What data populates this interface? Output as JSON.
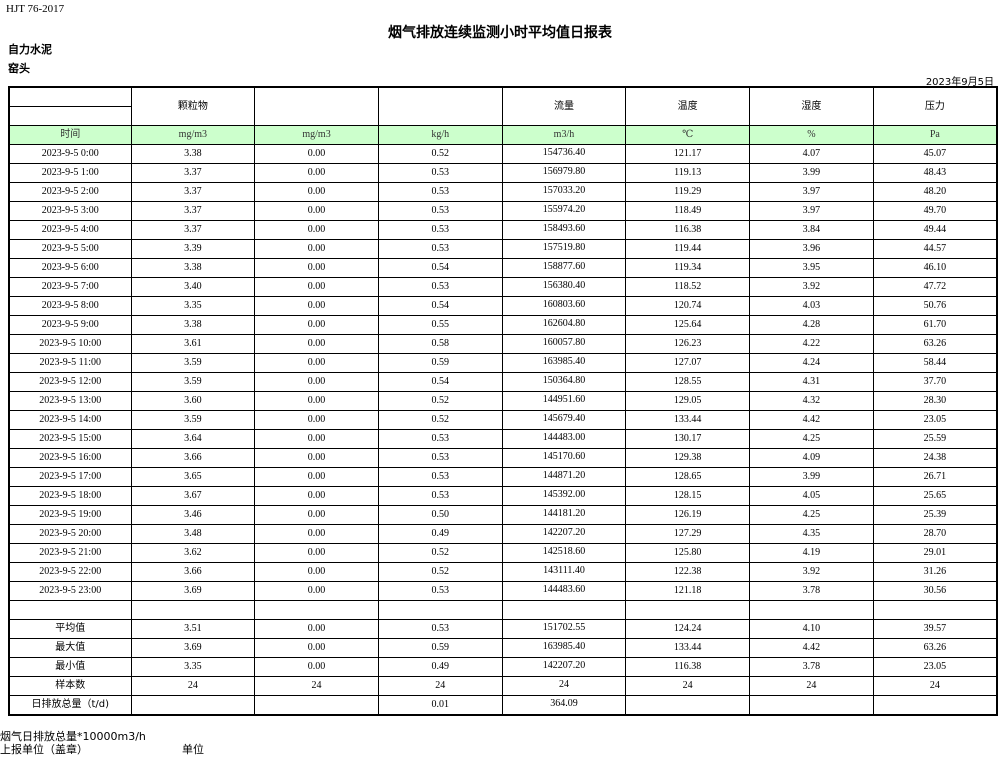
{
  "header": {
    "standard": "HJT  76-2017",
    "title": "烟气排放连续监测小时平均值日报表",
    "company": "自力水泥",
    "location": "窑头",
    "date": "2023年9月5日"
  },
  "columns": [
    "",
    "颗粒物",
    "",
    "",
    "流量",
    "温度",
    "湿度",
    "压力"
  ],
  "units": [
    "时间",
    "mg/m3",
    "mg/m3",
    "kg/h",
    "m3/h",
    "℃",
    "%",
    "Pa"
  ],
  "rows": [
    [
      "2023-9-5 0:00",
      "3.38",
      "0.00",
      "0.52",
      "154736.40",
      "121.17",
      "4.07",
      "45.07"
    ],
    [
      "2023-9-5 1:00",
      "3.37",
      "0.00",
      "0.53",
      "156979.80",
      "119.13",
      "3.99",
      "48.43"
    ],
    [
      "2023-9-5 2:00",
      "3.37",
      "0.00",
      "0.53",
      "157033.20",
      "119.29",
      "3.97",
      "48.20"
    ],
    [
      "2023-9-5 3:00",
      "3.37",
      "0.00",
      "0.53",
      "155974.20",
      "118.49",
      "3.97",
      "49.70"
    ],
    [
      "2023-9-5 4:00",
      "3.37",
      "0.00",
      "0.53",
      "158493.60",
      "116.38",
      "3.84",
      "49.44"
    ],
    [
      "2023-9-5 5:00",
      "3.39",
      "0.00",
      "0.53",
      "157519.80",
      "119.44",
      "3.96",
      "44.57"
    ],
    [
      "2023-9-5 6:00",
      "3.38",
      "0.00",
      "0.54",
      "158877.60",
      "119.34",
      "3.95",
      "46.10"
    ],
    [
      "2023-9-5 7:00",
      "3.40",
      "0.00",
      "0.53",
      "156380.40",
      "118.52",
      "3.92",
      "47.72"
    ],
    [
      "2023-9-5 8:00",
      "3.35",
      "0.00",
      "0.54",
      "160803.60",
      "120.74",
      "4.03",
      "50.76"
    ],
    [
      "2023-9-5 9:00",
      "3.38",
      "0.00",
      "0.55",
      "162604.80",
      "125.64",
      "4.28",
      "61.70"
    ],
    [
      "2023-9-5 10:00",
      "3.61",
      "0.00",
      "0.58",
      "160057.80",
      "126.23",
      "4.22",
      "63.26"
    ],
    [
      "2023-9-5 11:00",
      "3.59",
      "0.00",
      "0.59",
      "163985.40",
      "127.07",
      "4.24",
      "58.44"
    ],
    [
      "2023-9-5 12:00",
      "3.59",
      "0.00",
      "0.54",
      "150364.80",
      "128.55",
      "4.31",
      "37.70"
    ],
    [
      "2023-9-5 13:00",
      "3.60",
      "0.00",
      "0.52",
      "144951.60",
      "129.05",
      "4.32",
      "28.30"
    ],
    [
      "2023-9-5 14:00",
      "3.59",
      "0.00",
      "0.52",
      "145679.40",
      "133.44",
      "4.42",
      "23.05"
    ],
    [
      "2023-9-5 15:00",
      "3.64",
      "0.00",
      "0.53",
      "144483.00",
      "130.17",
      "4.25",
      "25.59"
    ],
    [
      "2023-9-5 16:00",
      "3.66",
      "0.00",
      "0.53",
      "145170.60",
      "129.38",
      "4.09",
      "24.38"
    ],
    [
      "2023-9-5 17:00",
      "3.65",
      "0.00",
      "0.53",
      "144871.20",
      "128.65",
      "3.99",
      "26.71"
    ],
    [
      "2023-9-5 18:00",
      "3.67",
      "0.00",
      "0.53",
      "145392.00",
      "128.15",
      "4.05",
      "25.65"
    ],
    [
      "2023-9-5 19:00",
      "3.46",
      "0.00",
      "0.50",
      "144181.20",
      "126.19",
      "4.25",
      "25.39"
    ],
    [
      "2023-9-5 20:00",
      "3.48",
      "0.00",
      "0.49",
      "142207.20",
      "127.29",
      "4.35",
      "28.70"
    ],
    [
      "2023-9-5 21:00",
      "3.62",
      "0.00",
      "0.52",
      "142518.60",
      "125.80",
      "4.19",
      "29.01"
    ],
    [
      "2023-9-5 22:00",
      "3.66",
      "0.00",
      "0.52",
      "143111.40",
      "122.38",
      "3.92",
      "31.26"
    ],
    [
      "2023-9-5 23:00",
      "3.69",
      "0.00",
      "0.53",
      "144483.60",
      "121.18",
      "3.78",
      "30.56"
    ]
  ],
  "summary": [
    [
      "平均值",
      "3.51",
      "0.00",
      "0.53",
      "151702.55",
      "124.24",
      "4.10",
      "39.57"
    ],
    [
      "最大值",
      "3.69",
      "0.00",
      "0.59",
      "163985.40",
      "133.44",
      "4.42",
      "63.26"
    ],
    [
      "最小值",
      "3.35",
      "0.00",
      "0.49",
      "142207.20",
      "116.38",
      "3.78",
      "23.05"
    ],
    [
      "样本数",
      "24",
      "24",
      "24",
      "24",
      "24",
      "24",
      "24"
    ],
    [
      "日排放总量（t/d)",
      "",
      "",
      "0.01",
      "364.09",
      "",
      "",
      ""
    ]
  ],
  "footer": {
    "note": "烟气日排放总量*10000m3/h",
    "reporter_label": "上报单位（盖章）",
    "unit_label": "单位"
  }
}
